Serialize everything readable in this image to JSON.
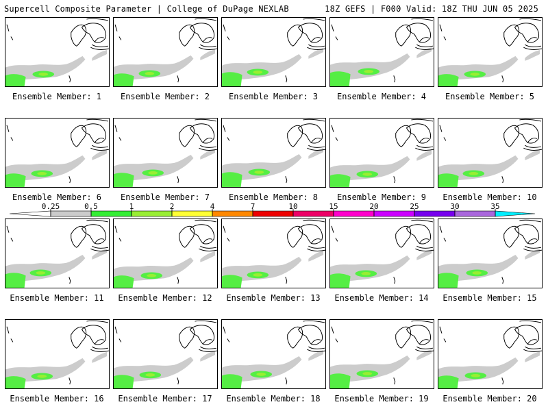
{
  "header": {
    "title_left": "Supercell Composite Parameter | College of DuPage NEXLAB",
    "title_right": "18Z GEFS | F000 Valid: 18Z THU JUN 05 2025"
  },
  "panels": [
    {
      "label": "Ensemble Member: 1"
    },
    {
      "label": "Ensemble Member: 2"
    },
    {
      "label": "Ensemble Member: 3"
    },
    {
      "label": "Ensemble Member: 4"
    },
    {
      "label": "Ensemble Member: 5"
    },
    {
      "label": "Ensemble Member: 6"
    },
    {
      "label": "Ensemble Member: 7"
    },
    {
      "label": "Ensemble Member: 8"
    },
    {
      "label": "Ensemble Member: 9"
    },
    {
      "label": "Ensemble Member: 10"
    },
    {
      "label": "Ensemble Member: 11"
    },
    {
      "label": "Ensemble Member: 12"
    },
    {
      "label": "Ensemble Member: 13"
    },
    {
      "label": "Ensemble Member: 14"
    },
    {
      "label": "Ensemble Member: 15"
    },
    {
      "label": "Ensemble Member: 16"
    },
    {
      "label": "Ensemble Member: 17"
    },
    {
      "label": "Ensemble Member: 18"
    },
    {
      "label": "Ensemble Member: 19"
    },
    {
      "label": "Ensemble Member: 20"
    }
  ],
  "colorbar": {
    "ticks": [
      "0.25",
      "0.5",
      "1",
      "2",
      "4",
      "7",
      "10",
      "15",
      "20",
      "25",
      "30",
      "35"
    ],
    "colors": [
      "#cccccc",
      "#33ee33",
      "#99ee33",
      "#ffff33",
      "#ff8800",
      "#ee0000",
      "#ee0066",
      "#ff00cc",
      "#cc00ff",
      "#7700ee",
      "#aa66dd",
      "#00eeff"
    ],
    "map_colors": {
      "land_fill": "#ffffff",
      "coast": "#000000",
      "low": "#cccccc",
      "mid": "#55ee44",
      "high": "#99ee33"
    }
  }
}
